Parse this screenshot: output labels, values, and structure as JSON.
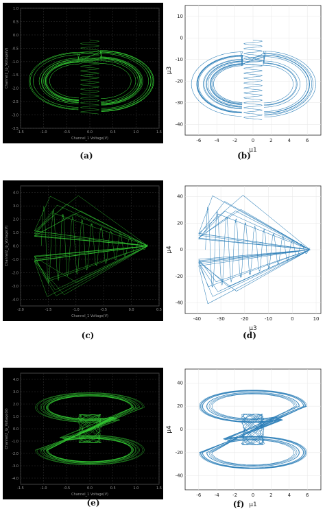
{
  "captions": {
    "a": "(a)",
    "b": "(b)",
    "c": "(c)",
    "d": "(d)",
    "e": "(e)",
    "f": "(f)"
  },
  "colors": {
    "oscilloscope_trace": "#32c832",
    "oscilloscope_bg": "#000000",
    "plot_trace": "#1f77b4",
    "grid": "#2e2e2e"
  },
  "chart_data": [
    {
      "id": "a",
      "type": "line",
      "style": "oscilloscope",
      "title": "",
      "xlabel": "Channel_1 Voltage(V)",
      "ylabel": "Channel2_ip_Voltage(V)",
      "x_ticks": [
        "-1.5",
        "-1.0",
        "-0.5",
        "0.0",
        "0.5",
        "1.0",
        "1.5"
      ],
      "y_ticks": [
        "1.0",
        "0.5",
        "0.0",
        "-0.5",
        "-1.0",
        "-1.5",
        "-2.0",
        "-2.5",
        "-3.0",
        "-3.5"
      ],
      "xlim": [
        -1.5,
        1.5
      ],
      "ylim": [
        -3.5,
        1.0
      ],
      "grid": true,
      "attractor": "four-wing, narrow twisted core"
    },
    {
      "id": "b",
      "type": "line",
      "style": "matplotlib",
      "title": "",
      "xlabel": "μ1",
      "ylabel": "μ3",
      "x_ticks": [
        "-6",
        "-4",
        "-2",
        "0",
        "2",
        "4",
        "6"
      ],
      "y_ticks": [
        "10",
        "0",
        "-10",
        "-20",
        "-30",
        "-40"
      ],
      "xlim": [
        -7.5,
        7.5
      ],
      "ylim": [
        -45,
        15
      ],
      "grid": true,
      "attractor": "four-wing, narrow twisted core"
    },
    {
      "id": "c",
      "type": "line",
      "style": "oscilloscope",
      "title": "",
      "xlabel": "Channel_1 Voltage(V)",
      "ylabel": "Channel2_ip_Voltage(V)",
      "x_ticks": [
        "-2.0",
        "-1.5",
        "-1.0",
        "-0.5",
        "0.0",
        "0.5"
      ],
      "y_ticks": [
        "4.0",
        "3.0",
        "2.0",
        "1.0",
        "0.0",
        "-1.0",
        "-2.0",
        "-3.0",
        "-4.0"
      ],
      "xlim": [
        -2.0,
        0.5
      ],
      "ylim": [
        -4.5,
        4.5
      ],
      "grid": true,
      "attractor": "spiral cone"
    },
    {
      "id": "d",
      "type": "line",
      "style": "matplotlib",
      "title": "",
      "xlabel": "μ3",
      "ylabel": "μ4",
      "x_ticks": [
        "-40",
        "-30",
        "-20",
        "-10",
        "0",
        "10"
      ],
      "y_ticks": [
        "40",
        "20",
        "0",
        "-20",
        "-40"
      ],
      "xlim": [
        -45,
        12
      ],
      "ylim": [
        -48,
        48
      ],
      "grid": true,
      "attractor": "spiral cone"
    },
    {
      "id": "e",
      "type": "line",
      "style": "oscilloscope",
      "title": "",
      "xlabel": "Channel_1 Voltage(V)",
      "ylabel": "Channel2_ip_Voltage(V)",
      "x_ticks": [
        "-1.5",
        "-1.0",
        "-0.5",
        "0.0",
        "0.5",
        "1.0",
        "1.5"
      ],
      "y_ticks": [
        "4.0",
        "3.0",
        "2.0",
        "1.0",
        "0.0",
        "-1.0",
        "-2.0",
        "-3.0",
        "-4.0"
      ],
      "xlim": [
        -1.5,
        1.5
      ],
      "ylim": [
        -4.5,
        4.5
      ],
      "grid": true,
      "attractor": "double-scroll S-shape"
    },
    {
      "id": "f",
      "type": "line",
      "style": "matplotlib",
      "title": "",
      "xlabel": "μ1",
      "ylabel": "μ4",
      "x_ticks": [
        "-6",
        "-4",
        "-2",
        "0",
        "2",
        "4",
        "6"
      ],
      "y_ticks": [
        "40",
        "20",
        "0",
        "-20",
        "-40"
      ],
      "xlim": [
        -7.5,
        7.5
      ],
      "ylim": [
        -52,
        52
      ],
      "grid": true,
      "attractor": "double-scroll S-shape"
    }
  ]
}
